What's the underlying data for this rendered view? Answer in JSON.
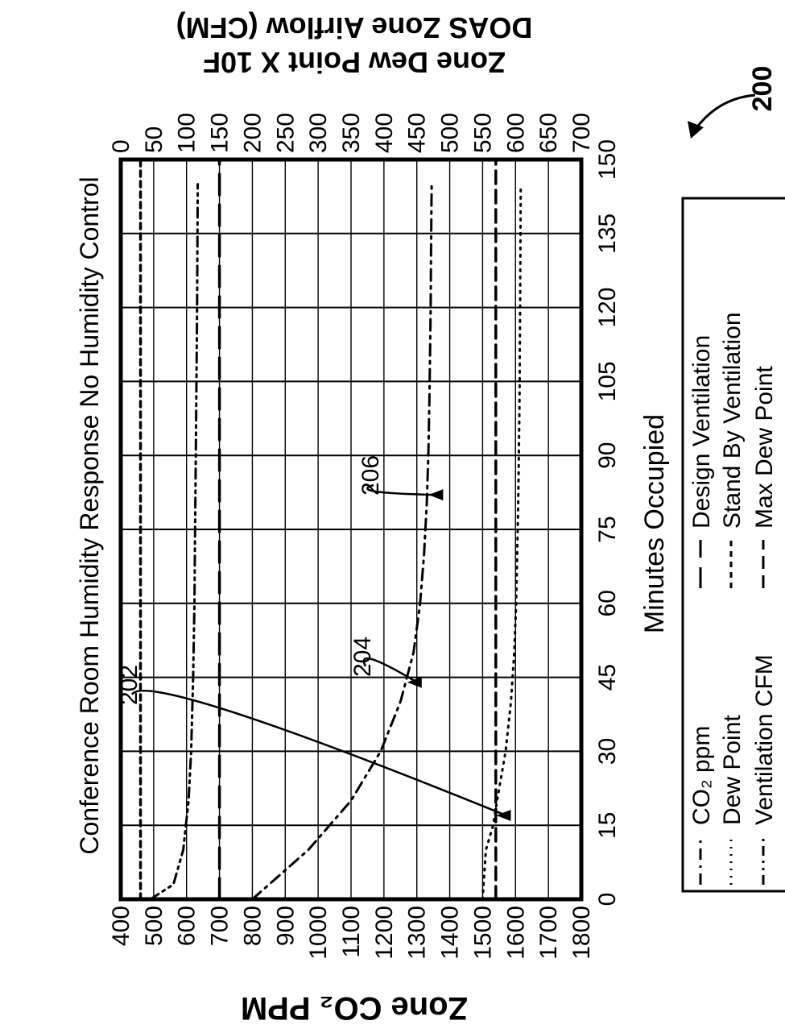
{
  "figure_number": "200",
  "chart_data": {
    "type": "line",
    "title": "Conference Room Humidity Response No Humidity Control",
    "xlabel": "Minutes Occupied",
    "ylabel_left": "Zone CO₂ PPM",
    "ylabel_right_line1": "Zone Dew Point X 10F",
    "ylabel_right_line2": "DOAS Zone Airflow (CFM)",
    "xlim": [
      0,
      150
    ],
    "x_ticks": [
      0,
      15,
      30,
      45,
      60,
      75,
      90,
      105,
      120,
      135,
      150
    ],
    "ylim_left": [
      400,
      1800
    ],
    "y_ticks_left": [
      400,
      500,
      600,
      700,
      800,
      900,
      1000,
      1100,
      1200,
      1300,
      1400,
      1500,
      1600,
      1700,
      1800
    ],
    "ylim_right": [
      0,
      700
    ],
    "y_ticks_right": [
      0,
      50,
      100,
      150,
      200,
      250,
      300,
      350,
      400,
      450,
      500,
      550,
      600,
      650,
      700
    ],
    "grid": true,
    "orientation": "rotated 90 degrees counter-clockwise",
    "legend_position": "bottom",
    "series": [
      {
        "name": "CO₂ ppm",
        "style": "dashdot",
        "axis": "left",
        "x": [
          0,
          10,
          20,
          30,
          40,
          50,
          60,
          70,
          80,
          90,
          100,
          110,
          120,
          130,
          145
        ],
        "y": [
          800,
          970,
          1100,
          1190,
          1250,
          1290,
          1310,
          1322,
          1330,
          1335,
          1338,
          1340,
          1342,
          1343,
          1345
        ]
      },
      {
        "name": "Dew Point",
        "style": "dotted",
        "axis": "right",
        "x": [
          0,
          10,
          15,
          20,
          30,
          40,
          50,
          60,
          80,
          100,
          120,
          145
        ],
        "y": [
          550,
          555,
          566,
          572,
          585,
          593,
          598,
          601,
          604,
          606,
          607,
          608
        ]
      },
      {
        "name": "Ventilation CFM",
        "style": "dashdotdot",
        "axis": "right",
        "x": [
          0,
          3,
          10,
          20,
          30,
          45,
          60,
          75,
          90,
          105,
          120,
          145
        ],
        "y": [
          45,
          80,
          95,
          103,
          107,
          110,
          112,
          113,
          114,
          115,
          116,
          117
        ]
      },
      {
        "name": "Design Ventilation",
        "style": "longdash",
        "axis": "right",
        "x": [
          0,
          150
        ],
        "y": [
          150,
          150
        ]
      },
      {
        "name": "Stand By Ventilation",
        "style": "shortdash",
        "axis": "right",
        "x": [
          0,
          150
        ],
        "y": [
          30,
          30
        ]
      },
      {
        "name": "Max Dew Point",
        "style": "dash",
        "axis": "right",
        "x": [
          0,
          150
        ],
        "y": [
          570,
          570
        ]
      }
    ],
    "annotations": [
      {
        "label": "202",
        "target": "Dew Point"
      },
      {
        "label": "204",
        "target": "CO₂ ppm"
      },
      {
        "label": "206",
        "target": "CO₂ ppm"
      }
    ]
  }
}
